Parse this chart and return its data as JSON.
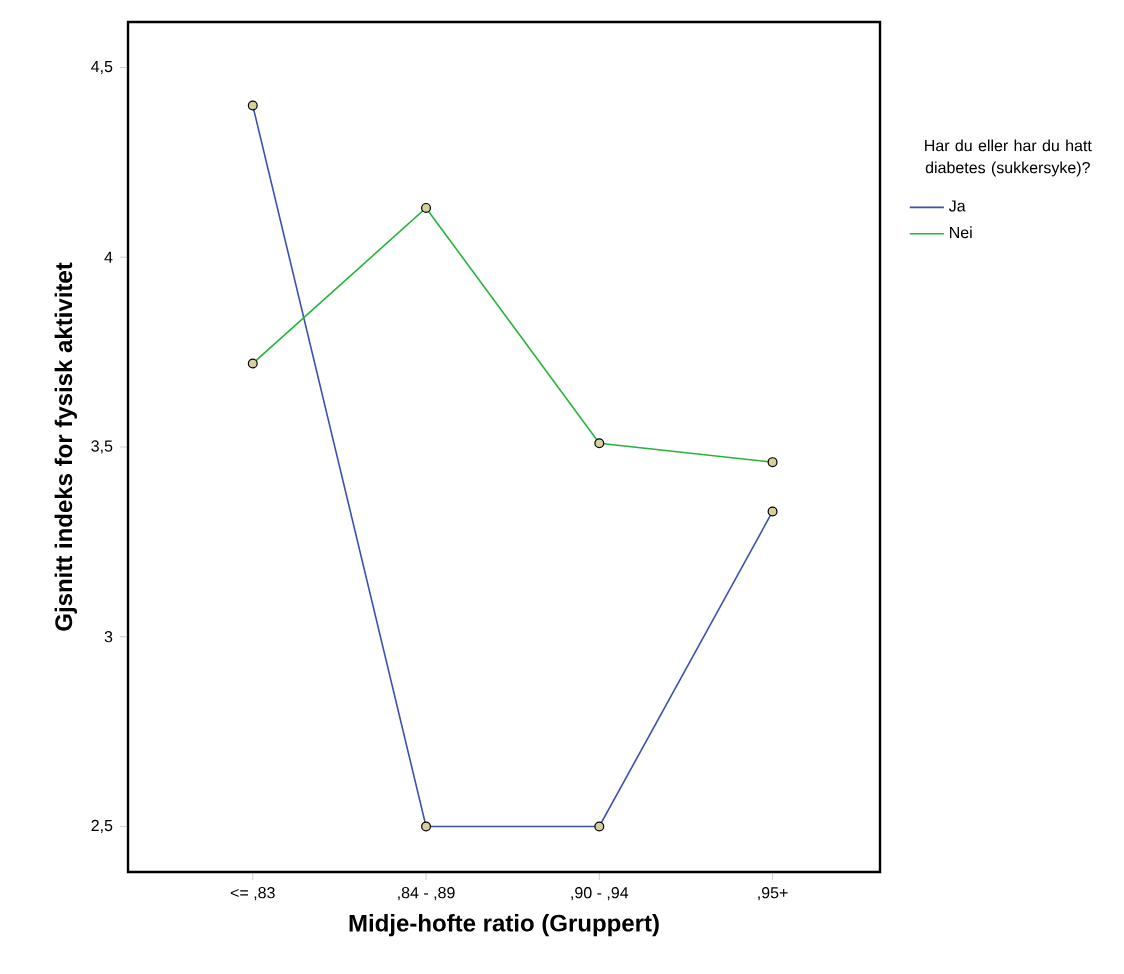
{
  "chart_data": {
    "type": "line",
    "xlabel": "Midje-hofte ratio (Gruppert)",
    "ylabel": "Gjsnitt indeks for fysisk aktivitet",
    "legend_title": "Har du eller har du hatt diabetes (sukkersyke)?",
    "categories": [
      "<= ,83",
      ",84 - ,89",
      ",90 - ,94",
      ",95+"
    ],
    "series": [
      {
        "name": "Ja",
        "color": "#3c50b4",
        "values": [
          4.4,
          2.5,
          2.5,
          3.33
        ]
      },
      {
        "name": "Nei",
        "color": "#28b43c",
        "values": [
          3.72,
          4.13,
          3.51,
          3.46
        ]
      }
    ],
    "ylim": [
      2.38,
      4.62
    ],
    "yticks": [
      {
        "value": 2.5,
        "label": "2,5"
      },
      {
        "value": 3,
        "label": "3"
      },
      {
        "value": 3.5,
        "label": "3,5"
      },
      {
        "value": 4,
        "label": "4"
      },
      {
        "value": 4.5,
        "label": "4,5"
      }
    ],
    "marker": "circle",
    "legend": "right",
    "grid": false
  }
}
